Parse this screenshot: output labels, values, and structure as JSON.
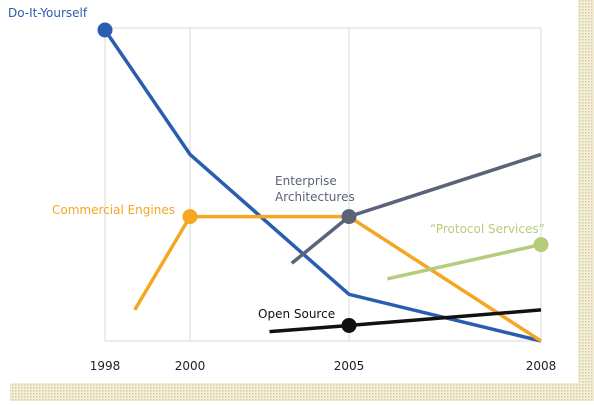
{
  "chart_data": {
    "type": "line",
    "xlim": [
      1998,
      2008
    ],
    "xticks": [
      1998,
      2000,
      2005,
      2008
    ],
    "ylim": [
      0,
      100
    ],
    "series": [
      {
        "name": "Do-It-Yourself",
        "color": "#2a5db0",
        "x": [
          1998,
          2000,
          2005,
          2008
        ],
        "values": [
          100,
          60,
          15,
          0
        ],
        "marker": 0
      },
      {
        "name": "Commercial Engines",
        "color": "#f5a623",
        "x": [
          1998.7,
          2000,
          2005,
          2008
        ],
        "values": [
          10,
          40,
          40,
          0
        ],
        "marker": 1
      },
      {
        "name": "Enterprise Architectures",
        "color": "#5a6377",
        "x": [
          2003.2,
          2005,
          2008
        ],
        "values": [
          25,
          40,
          60
        ],
        "marker": 1
      },
      {
        "name": "“Protocol Services”",
        "color": "#b5cc7a",
        "x": [
          2005.6,
          2008
        ],
        "values": [
          20,
          31
        ],
        "marker": 1
      },
      {
        "name": "Open Source",
        "color": "#111111",
        "x": [
          2002.5,
          2005,
          2008
        ],
        "values": [
          3,
          5,
          10
        ],
        "marker": 1
      }
    ]
  }
}
